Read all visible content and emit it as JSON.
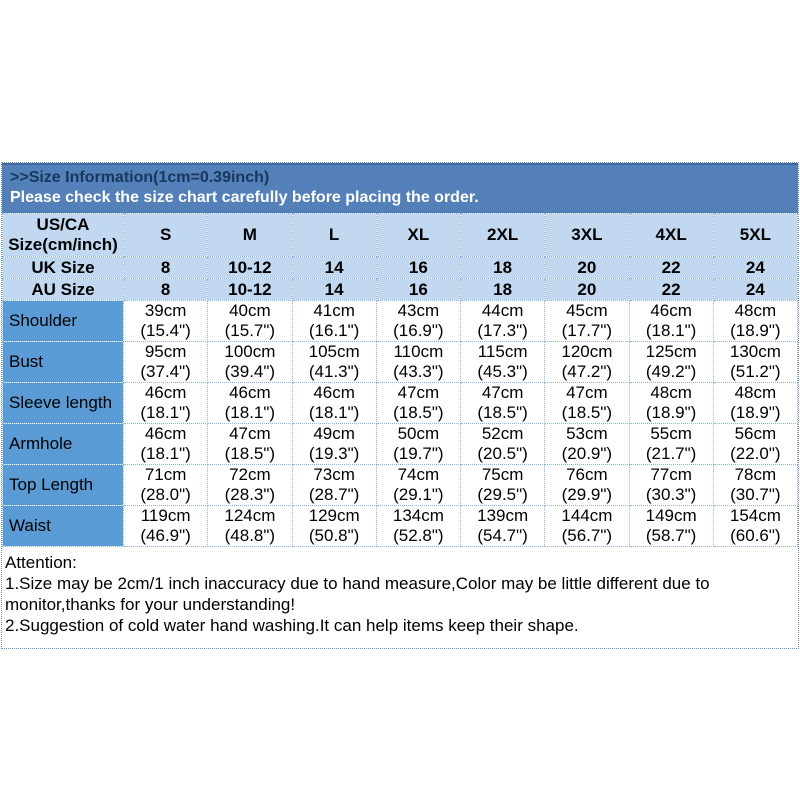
{
  "banner": {
    "title": ">>Size Information(1cm=0.39inch)",
    "subtitle": "Please check the size chart carefully before placing the order."
  },
  "table": {
    "corner_header": [
      "US/CA",
      "Size(cm/inch)"
    ],
    "size_columns": [
      "S",
      "M",
      "L",
      "XL",
      "2XL",
      "3XL",
      "4XL",
      "5XL"
    ],
    "conversion_rows": [
      {
        "label": "UK Size",
        "values": [
          "8",
          "10-12",
          "14",
          "16",
          "18",
          "20",
          "22",
          "24"
        ]
      },
      {
        "label": "AU Size",
        "values": [
          "8",
          "10-12",
          "14",
          "16",
          "18",
          "20",
          "22",
          "24"
        ]
      }
    ],
    "measurement_rows": [
      {
        "label": "Shoulder",
        "cm": [
          "39cm",
          "40cm",
          "41cm",
          "43cm",
          "44cm",
          "45cm",
          "46cm",
          "48cm"
        ],
        "inch": [
          "(15.4\")",
          "(15.7\")",
          "(16.1\")",
          "(16.9\")",
          "(17.3\")",
          "(17.7\")",
          "(18.1\")",
          "(18.9\")"
        ]
      },
      {
        "label": "Bust",
        "cm": [
          "95cm",
          "100cm",
          "105cm",
          "110cm",
          "115cm",
          "120cm",
          "125cm",
          "130cm"
        ],
        "inch": [
          "(37.4\")",
          "(39.4\")",
          "(41.3\")",
          "(43.3\")",
          "(45.3\")",
          "(47.2\")",
          "(49.2\")",
          "(51.2\")"
        ]
      },
      {
        "label": "Sleeve length",
        "cm": [
          "46cm",
          "46cm",
          "46cm",
          "47cm",
          "47cm",
          "47cm",
          "48cm",
          "48cm"
        ],
        "inch": [
          "(18.1\")",
          "(18.1\")",
          "(18.1\")",
          "(18.5\")",
          "(18.5\")",
          "(18.5\")",
          "(18.9\")",
          "(18.9\")"
        ]
      },
      {
        "label": "Armhole",
        "cm": [
          "46cm",
          "47cm",
          "49cm",
          "50cm",
          "52cm",
          "53cm",
          "55cm",
          "56cm"
        ],
        "inch": [
          "(18.1\")",
          "(18.5\")",
          "(19.3\")",
          "(19.7\")",
          "(20.5\")",
          "(20.9\")",
          "(21.7\")",
          "(22.0\")"
        ]
      },
      {
        "label": "Top Length",
        "cm": [
          "71cm",
          "72cm",
          "73cm",
          "74cm",
          "75cm",
          "76cm",
          "77cm",
          "78cm"
        ],
        "inch": [
          "(28.0\")",
          "(28.3\")",
          "(28.7\")",
          "(29.1\")",
          "(29.5\")",
          "(29.9\")",
          "(30.3\")",
          "(30.7\")"
        ]
      },
      {
        "label": "Waist",
        "cm": [
          "119cm",
          "124cm",
          "129cm",
          "134cm",
          "139cm",
          "144cm",
          "149cm",
          "154cm"
        ],
        "inch": [
          "(46.9\")",
          "(48.8\")",
          "(50.8\")",
          "(52.8\")",
          "(54.7\")",
          "(56.7\")",
          "(58.7\")",
          "(60.6\")"
        ]
      }
    ]
  },
  "attention": {
    "title": "Attention:",
    "items": [
      "1.Size may be 2cm/1 inch inaccuracy due to hand measure,Color may be little different due to monitor,thanks for your understanding!",
      "2.Suggestion of cold water hand washing.It can help items keep their shape."
    ]
  },
  "colors": {
    "banner_bg": "#5380b8",
    "banner_edge": "#40699b",
    "banner_title_color": "#17375e",
    "banner_subtitle_color": "#ffffff",
    "header_bg": "#c1d8f0",
    "label_bg": "#5b9bd5",
    "grid_border": "#8eb4e3",
    "outer_border": "#6b8fb8"
  }
}
